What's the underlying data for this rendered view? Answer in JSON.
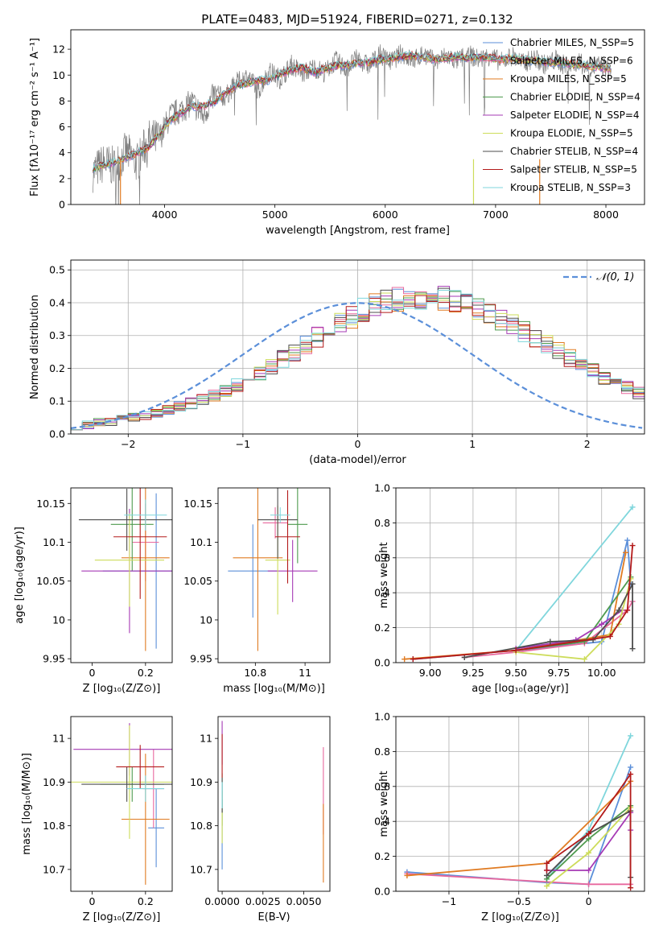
{
  "figure_title": "PLATE=0483, MJD=51924, FIBERID=0271, z=0.132",
  "palette": {
    "chabrier_miles": "#5b8fd9",
    "salpeter_miles": "#e8689e",
    "kroupa_miles": "#e07b22",
    "chabrier_elodie": "#4e9a4e",
    "salpeter_elodie": "#a63ab5",
    "kroupa_elodie": "#cddc5a",
    "chabrier_stelib": "#4d4d4d",
    "salpeter_stelib": "#b31a1a",
    "kroupa_stelib": "#7fd6dc",
    "data": "#7f7f7f",
    "gaussian": "#5b8fd9"
  },
  "chart_data": [
    {
      "id": "spectrum",
      "type": "line",
      "title": "PLATE=0483, MJD=51924, FIBERID=0271, z=0.132",
      "xlabel": "wavelength [Angstrom, rest frame]",
      "ylabel": "Flux [fλ10⁻¹⁷ erg cm⁻² s⁻¹ A⁻¹]",
      "xlim": [
        3150,
        8350
      ],
      "ylim": [
        0,
        13.5
      ],
      "xticks": [
        4000,
        5000,
        6000,
        7000,
        8000
      ],
      "yticks": [
        0,
        2,
        4,
        6,
        8,
        10,
        12
      ],
      "grid": false,
      "legend_position": "right",
      "legend": [
        {
          "label": "Chabrier MILES, N_SSP=5",
          "color": "#5b8fd9"
        },
        {
          "label": "Salpeter MILES, N_SSP=6",
          "color": "#e8689e"
        },
        {
          "label": "Kroupa MILES, N_SSP=5",
          "color": "#e07b22"
        },
        {
          "label": "Chabrier ELODIE, N_SSP=4",
          "color": "#4e9a4e"
        },
        {
          "label": "Salpeter ELODIE, N_SSP=4",
          "color": "#a63ab5"
        },
        {
          "label": "Kroupa ELODIE, N_SSP=5",
          "color": "#cddc5a"
        },
        {
          "label": "Chabrier STELIB, N_SSP=4",
          "color": "#4d4d4d"
        },
        {
          "label": "Salpeter STELIB, N_SSP=5",
          "color": "#b31a1a"
        },
        {
          "label": "Kroupa STELIB, N_SSP=3",
          "color": "#7fd6dc"
        }
      ],
      "x": [
        3350,
        3450,
        3550,
        3650,
        3750,
        3850,
        3950,
        4050,
        4150,
        4250,
        4350,
        4450,
        4550,
        4650,
        4750,
        4850,
        4950,
        5050,
        5150,
        5250,
        5350,
        5450,
        5550,
        5650,
        5750,
        5850,
        5950,
        6050,
        6150,
        6250,
        6350,
        6450,
        6550,
        6650,
        6750,
        6850,
        6950,
        7050,
        7150,
        7250,
        7350,
        7450,
        7550,
        7650,
        7750,
        7850,
        7950,
        8050
      ],
      "model_flux": [
        2.8,
        3.0,
        3.3,
        3.6,
        4.0,
        4.4,
        5.4,
        6.5,
        7.1,
        7.6,
        7.6,
        7.9,
        8.6,
        9.2,
        9.4,
        9.6,
        9.6,
        10.1,
        10.4,
        10.6,
        10.2,
        10.5,
        10.7,
        10.8,
        10.9,
        11.0,
        11.2,
        11.3,
        11.4,
        11.5,
        11.4,
        11.2,
        11.3,
        11.4,
        11.3,
        11.4,
        11.3,
        11.2,
        11.3,
        11.2,
        11.1,
        11.0,
        11.0,
        10.9,
        10.8,
        10.7,
        10.6,
        10.5
      ],
      "data_flux": [
        2.5,
        3.2,
        2.9,
        4.1,
        3.2,
        5.0,
        5.1,
        6.8,
        7.3,
        7.9,
        6.8,
        8.5,
        8.3,
        9.4,
        9.9,
        8.8,
        10.3,
        9.7,
        10.8,
        10.1,
        10.6,
        10.2,
        11.1,
        10.5,
        11.3,
        10.7,
        11.6,
        11.0,
        11.7,
        11.1,
        11.7,
        11.0,
        11.5,
        11.1,
        11.6,
        11.2,
        11.5,
        11.0,
        11.5,
        10.9,
        11.3,
        10.8,
        11.2,
        10.6,
        11.0,
        10.5,
        10.8,
        10.3
      ],
      "vertical_spikes": [
        {
          "x": 3600,
          "color": "#e07b22"
        },
        {
          "x": 6800,
          "color": "#cddc5a"
        },
        {
          "x": 7400,
          "color": "#e07b22"
        }
      ]
    },
    {
      "id": "residuals",
      "type": "step-histogram",
      "xlabel": "(data-model)/error",
      "ylabel": "Normed distribution",
      "xlim": [
        -2.5,
        2.5
      ],
      "ylim": [
        0,
        0.53
      ],
      "xticks": [
        -2,
        -1,
        0,
        1,
        2
      ],
      "yticks": [
        0.0,
        0.1,
        0.2,
        0.3,
        0.4,
        0.5
      ],
      "grid": true,
      "legend_position": "top-right",
      "legend": [
        {
          "label": "𝒩(0, 1)",
          "style": "dashed",
          "color": "#5b8fd9"
        }
      ],
      "bin_edges_start": -2.5,
      "bin_width": 0.1,
      "base_density": [
        0.025,
        0.028,
        0.035,
        0.039,
        0.044,
        0.05,
        0.057,
        0.065,
        0.074,
        0.083,
        0.094,
        0.105,
        0.119,
        0.134,
        0.15,
        0.168,
        0.187,
        0.207,
        0.228,
        0.249,
        0.272,
        0.295,
        0.317,
        0.338,
        0.358,
        0.377,
        0.391,
        0.402,
        0.41,
        0.415,
        0.418,
        0.417,
        0.412,
        0.404,
        0.394,
        0.381,
        0.366,
        0.35,
        0.332,
        0.313,
        0.293,
        0.272,
        0.252,
        0.232,
        0.212,
        0.192,
        0.174,
        0.157,
        0.14,
        0.125
      ]
    },
    {
      "id": "age-vs-Z",
      "type": "errorbar",
      "xlabel": "Z [log₁₀(Z/Z⊙)]",
      "ylabel": "age  [log₁₀(age/yr)]",
      "xlim": [
        -0.08,
        0.3
      ],
      "ylim": [
        9.945,
        10.17
      ],
      "xticks": [
        0.0,
        0.2
      ],
      "yticks": [
        9.95,
        10.0,
        10.05,
        10.1,
        10.15
      ],
      "points": [
        {
          "x": 0.24,
          "y": 10.063,
          "xerr": 0.2,
          "yerr": 0.1,
          "color": "#5b8fd9"
        },
        {
          "x": 0.2,
          "y": 10.1,
          "xerr": 0.05,
          "yerr": 0.05,
          "color": "#e8689e"
        },
        {
          "x": 0.2,
          "y": 10.08,
          "xerr": 0.09,
          "yerr": 0.12,
          "color": "#e07b22"
        },
        {
          "x": 0.15,
          "y": 10.123,
          "xerr": 0.08,
          "yerr": 0.06,
          "color": "#4e9a4e"
        },
        {
          "x": 0.14,
          "y": 10.063,
          "xerr": 0.18,
          "yerr": 0.08,
          "color": "#a63ab5"
        },
        {
          "x": 0.14,
          "y": 10.077,
          "xerr": 0.13,
          "yerr": 0.06,
          "color": "#cddc5a"
        },
        {
          "x": 0.13,
          "y": 10.129,
          "xerr": 0.18,
          "yerr": 0.04,
          "color": "#4d4d4d"
        },
        {
          "x": 0.18,
          "y": 10.107,
          "xerr": 0.1,
          "yerr": 0.08,
          "color": "#b31a1a"
        },
        {
          "x": 0.2,
          "y": 10.135,
          "xerr": 0.08,
          "yerr": 0.02,
          "color": "#7fd6dc"
        }
      ]
    },
    {
      "id": "age-vs-mass",
      "type": "errorbar",
      "xlabel": "mass [log₁₀(M/M⊙)]",
      "ylabel": "",
      "xlim": [
        10.65,
        11.1
      ],
      "ylim": [
        9.945,
        10.17
      ],
      "xticks": [
        10.8,
        11.0
      ],
      "yticks": [
        9.95,
        10.0,
        10.05,
        10.1,
        10.15
      ],
      "points": [
        {
          "x": 10.79,
          "y": 10.063,
          "xerr": 0.1,
          "yerr": 0.06,
          "color": "#5b8fd9"
        },
        {
          "x": 10.88,
          "y": 10.125,
          "xerr": 0.05,
          "yerr": 0.02,
          "color": "#e8689e"
        },
        {
          "x": 10.81,
          "y": 10.08,
          "xerr": 0.1,
          "yerr": 0.12,
          "color": "#e07b22"
        },
        {
          "x": 10.97,
          "y": 10.123,
          "xerr": 0.04,
          "yerr": 0.05,
          "color": "#4e9a4e"
        },
        {
          "x": 10.95,
          "y": 10.063,
          "xerr": 0.1,
          "yerr": 0.04,
          "color": "#a63ab5"
        },
        {
          "x": 10.89,
          "y": 10.077,
          "xerr": 0.05,
          "yerr": 0.07,
          "color": "#cddc5a"
        },
        {
          "x": 10.89,
          "y": 10.129,
          "xerr": 0.08,
          "yerr": 0.05,
          "color": "#4d4d4d"
        },
        {
          "x": 10.93,
          "y": 10.107,
          "xerr": 0.05,
          "yerr": 0.06,
          "color": "#b31a1a"
        },
        {
          "x": 10.9,
          "y": 10.135,
          "xerr": 0.04,
          "yerr": 0.01,
          "color": "#7fd6dc"
        }
      ]
    },
    {
      "id": "weight-vs-age",
      "type": "line",
      "xlabel": "age  [log₁₀(age/yr)]",
      "ylabel": "mass weight",
      "xlim": [
        8.8,
        10.25
      ],
      "ylim": [
        0.0,
        1.0
      ],
      "xticks": [
        9.0,
        9.25,
        9.5,
        9.75,
        10.0
      ],
      "xtick_labels": [
        "9.00",
        "9.25",
        "9.50",
        "9.75",
        "10.00"
      ],
      "yticks": [
        0.0,
        0.2,
        0.4,
        0.6,
        0.8,
        1.0
      ],
      "grid": true,
      "series": [
        {
          "color": "#7fd6dc",
          "x": [
            9.5,
            10.18
          ],
          "y": [
            0.07,
            0.89
          ]
        },
        {
          "color": "#5b8fd9",
          "x": [
            8.9,
            9.5,
            10.0,
            10.15,
            10.17
          ],
          "y": [
            0.02,
            0.07,
            0.12,
            0.7,
            0.45
          ]
        },
        {
          "color": "#e8689e",
          "x": [
            9.2,
            9.5,
            9.9,
            10.15,
            10.18
          ],
          "y": [
            0.03,
            0.06,
            0.11,
            0.3,
            0.35
          ]
        },
        {
          "color": "#e07b22",
          "x": [
            8.85,
            9.5,
            10.05,
            10.14
          ],
          "y": [
            0.02,
            0.07,
            0.16,
            0.63
          ]
        },
        {
          "color": "#4e9a4e",
          "x": [
            9.5,
            9.9,
            10.17
          ],
          "y": [
            0.07,
            0.12,
            0.49
          ]
        },
        {
          "color": "#a63ab5",
          "x": [
            9.5,
            9.85,
            10.0,
            10.12
          ],
          "y": [
            0.08,
            0.13,
            0.22,
            0.3
          ]
        },
        {
          "color": "#cddc5a",
          "x": [
            9.5,
            9.9,
            10.1,
            10.17
          ],
          "y": [
            0.06,
            0.02,
            0.22,
            0.48
          ]
        },
        {
          "color": "#4d4d4d",
          "x": [
            9.2,
            9.7,
            9.95,
            10.1,
            10.18,
            10.18
          ],
          "y": [
            0.03,
            0.12,
            0.13,
            0.3,
            0.45,
            0.08
          ]
        },
        {
          "color": "#b31a1a",
          "x": [
            8.9,
            9.5,
            10.05,
            10.15,
            10.18
          ],
          "y": [
            0.02,
            0.07,
            0.15,
            0.3,
            0.67
          ]
        }
      ]
    },
    {
      "id": "mass-vs-Z",
      "type": "errorbar",
      "xlabel": "Z [log₁₀(Z/Z⊙)]",
      "ylabel": "mass [log₁₀(M/M⊙)]",
      "xlim": [
        -0.08,
        0.3
      ],
      "ylim": [
        10.65,
        11.05
      ],
      "xticks": [
        0.0,
        0.2
      ],
      "yticks": [
        10.7,
        10.8,
        10.9,
        11.0
      ],
      "points": [
        {
          "x": 0.24,
          "y": 10.795,
          "xerr": 0.03,
          "yerr": 0.09,
          "color": "#5b8fd9"
        },
        {
          "x": 0.23,
          "y": 10.885,
          "xerr": 0.04,
          "yerr": 0.09,
          "color": "#e8689e"
        },
        {
          "x": 0.2,
          "y": 10.815,
          "xerr": 0.09,
          "yerr": 0.15,
          "color": "#e07b22"
        },
        {
          "x": 0.15,
          "y": 10.895,
          "xerr": 0.12,
          "yerr": 0.04,
          "color": "#4e9a4e"
        },
        {
          "x": 0.14,
          "y": 10.975,
          "xerr": 0.21,
          "yerr": 0.06,
          "color": "#a63ab5"
        },
        {
          "x": 0.14,
          "y": 10.9,
          "xerr": 0.22,
          "yerr": 0.13,
          "color": "#cddc5a"
        },
        {
          "x": 0.13,
          "y": 10.895,
          "xerr": 0.17,
          "yerr": 0.04,
          "color": "#4d4d4d"
        },
        {
          "x": 0.18,
          "y": 10.935,
          "xerr": 0.09,
          "yerr": 0.05,
          "color": "#b31a1a"
        },
        {
          "x": 0.2,
          "y": 10.885,
          "xerr": 0.07,
          "yerr": 0.03,
          "color": "#7fd6dc"
        }
      ]
    },
    {
      "id": "mass-vs-ebv",
      "type": "errorbar",
      "xlabel": "E(B-V)",
      "ylabel": "",
      "xlim": [
        -0.00025,
        0.0066
      ],
      "ylim": [
        10.65,
        11.05
      ],
      "xticks": [
        0.0,
        0.0025,
        0.005
      ],
      "xtick_labels": [
        "0.0000",
        "0.0025",
        "0.0050"
      ],
      "yticks": [
        10.7,
        10.8,
        10.9,
        11.0
      ],
      "points": [
        {
          "x": 0.0,
          "y": 10.78,
          "xerr": 0.0,
          "yerr": 0.08,
          "color": "#5b8fd9"
        },
        {
          "x": 0.0062,
          "y": 10.88,
          "xerr": 0.0,
          "yerr": 0.1,
          "color": "#e8689e"
        },
        {
          "x": 0.0062,
          "y": 10.76,
          "xerr": 0.0,
          "yerr": 0.09,
          "color": "#e07b22"
        },
        {
          "x": 0.0,
          "y": 10.86,
          "xerr": 0.0,
          "yerr": 0.06,
          "color": "#4e9a4e"
        },
        {
          "x": 0.0,
          "y": 10.99,
          "xerr": 0.0,
          "yerr": 0.05,
          "color": "#a63ab5"
        },
        {
          "x": 0.0,
          "y": 10.82,
          "xerr": 0.0,
          "yerr": 0.06,
          "color": "#cddc5a"
        },
        {
          "x": 0.0,
          "y": 10.87,
          "xerr": 0.0,
          "yerr": 0.04,
          "color": "#4d4d4d"
        },
        {
          "x": 0.0,
          "y": 10.96,
          "xerr": 0.0,
          "yerr": 0.05,
          "color": "#b31a1a"
        },
        {
          "x": 0.0,
          "y": 10.87,
          "xerr": 0.0,
          "yerr": 0.03,
          "color": "#7fd6dc"
        }
      ]
    },
    {
      "id": "weight-vs-Z",
      "type": "line",
      "xlabel": "Z [log₁₀(Z/Z⊙)]",
      "ylabel": "mass weight",
      "xlim": [
        -1.38,
        0.4
      ],
      "ylim": [
        0.0,
        1.0
      ],
      "xticks": [
        -1.0,
        -0.5,
        0.0
      ],
      "yticks": [
        0.0,
        0.2,
        0.4,
        0.6,
        0.8,
        1.0
      ],
      "grid": true,
      "series": [
        {
          "color": "#7fd6dc",
          "x": [
            -0.3,
            0.0,
            0.3
          ],
          "y": [
            0.07,
            0.35,
            0.89
          ]
        },
        {
          "color": "#5b8fd9",
          "x": [
            -1.3,
            -0.3,
            0.0,
            0.3
          ],
          "y": [
            0.11,
            0.05,
            0.04,
            0.71
          ]
        },
        {
          "color": "#e8689e",
          "x": [
            -1.3,
            0.0,
            0.3
          ],
          "y": [
            0.1,
            0.04,
            0.04
          ]
        },
        {
          "color": "#e07b22",
          "x": [
            -1.3,
            -0.3,
            0.3
          ],
          "y": [
            0.09,
            0.16,
            0.63
          ]
        },
        {
          "color": "#4e9a4e",
          "x": [
            -0.3,
            0.0,
            0.3
          ],
          "y": [
            0.07,
            0.3,
            0.49
          ]
        },
        {
          "color": "#a63ab5",
          "x": [
            -0.3,
            0.0,
            0.3,
            0.3
          ],
          "y": [
            0.12,
            0.12,
            0.45,
            0.35
          ]
        },
        {
          "color": "#cddc5a",
          "x": [
            -0.3,
            0.0,
            0.3
          ],
          "y": [
            0.03,
            0.22,
            0.48
          ]
        },
        {
          "color": "#4d4d4d",
          "x": [
            -0.3,
            0.0,
            0.3,
            0.3
          ],
          "y": [
            0.09,
            0.33,
            0.46,
            0.08
          ]
        },
        {
          "color": "#b31a1a",
          "x": [
            -0.3,
            -0.3,
            0.0,
            0.3,
            0.3
          ],
          "y": [
            0.12,
            0.16,
            0.33,
            0.67,
            0.02
          ]
        }
      ]
    }
  ]
}
